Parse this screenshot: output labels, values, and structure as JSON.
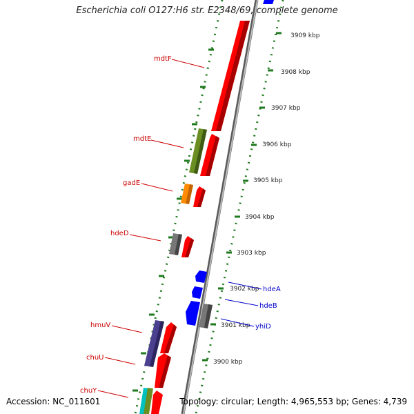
{
  "map": {
    "title": "Escherichia coli O127:H6 str. E2348/69, complete genome",
    "accession": "Accession: NC_011601",
    "summary": "Topology: circular; Length: 4,965,553 bp; Genes: 4,739"
  },
  "colors": {
    "backbone": "#8c8c8c",
    "tick": "#1f7a1f",
    "red_gene": "#ff0000",
    "olive_gene": "#6b8e23",
    "orange_gene": "#ff8c00",
    "gray_gene": "#666666",
    "purple_gene": "#4b3f8f",
    "blue_gene": "#0000ff",
    "cyan_gene": "#00c0c0",
    "label_red": "#cc0000",
    "label_blue": "#0000cc"
  },
  "scale_labels": [
    "3909 kbp",
    "3908 kbp",
    "3907 kbp",
    "3906 kbp",
    "3905 kbp",
    "3904 kbp",
    "3903 kbp",
    "3902 kbp",
    "3901 kbp",
    "3900 kbp"
  ],
  "gene_labels_left": [
    "mdtF",
    "mdtE",
    "gadE",
    "hdeD",
    "hmuV",
    "chuU",
    "chuY"
  ],
  "gene_labels_right": [
    "hdeA",
    "hdeB",
    "yhiD"
  ]
}
